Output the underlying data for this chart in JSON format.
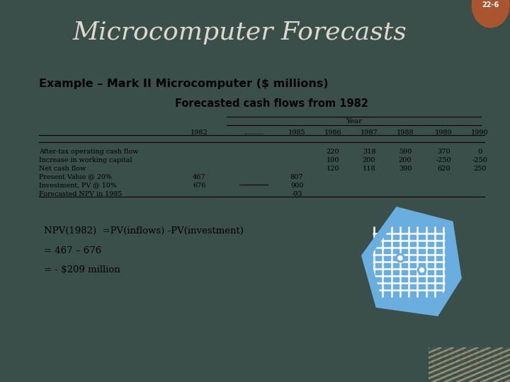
{
  "title": "Microcomputer Forecasts",
  "slide_num": "22-6",
  "header_bg": "#3a4f4a",
  "header_text_color": "#ddd8cc",
  "body_bg": "#f0ede0",
  "slide_num_bg": "#a85530",
  "subtitle": "Example – Mark II Microcomputer ($ millions)",
  "table_title": "Forecasted cash flows from 1982",
  "year_label": "Year",
  "col_headers": [
    "1982",
    ".........",
    "1985",
    "1986",
    "1987",
    "1988",
    "1989",
    "1990"
  ],
  "rows": [
    [
      "After-tax operating cash flow",
      "",
      "",
      "",
      "220",
      "318",
      "590",
      "370",
      "0"
    ],
    [
      "Increase in working capital",
      "",
      "",
      "",
      "100",
      "200",
      "200",
      "-250",
      "-250"
    ],
    [
      "Net cash flow",
      "",
      "",
      "",
      "120",
      "118",
      "390",
      "620",
      "250"
    ],
    [
      "Present Value @ 20%",
      "467",
      "",
      "807",
      "",
      "",
      "",
      "",
      ""
    ],
    [
      "Investment, PV @ 10%",
      "676",
      "",
      "900",
      "",
      "",
      "",
      "",
      ""
    ],
    [
      "Forecasted NPV in 1985",
      "",
      "",
      "-93",
      "",
      "",
      "",
      "",
      ""
    ]
  ],
  "npv_lines": [
    "NPV(1982)  =PV(inflows) -PV(investment)",
    "= 467 – 676",
    "= - $209 million"
  ],
  "chip_color": "#6aaee0",
  "bottom_right_color": "#a09070"
}
